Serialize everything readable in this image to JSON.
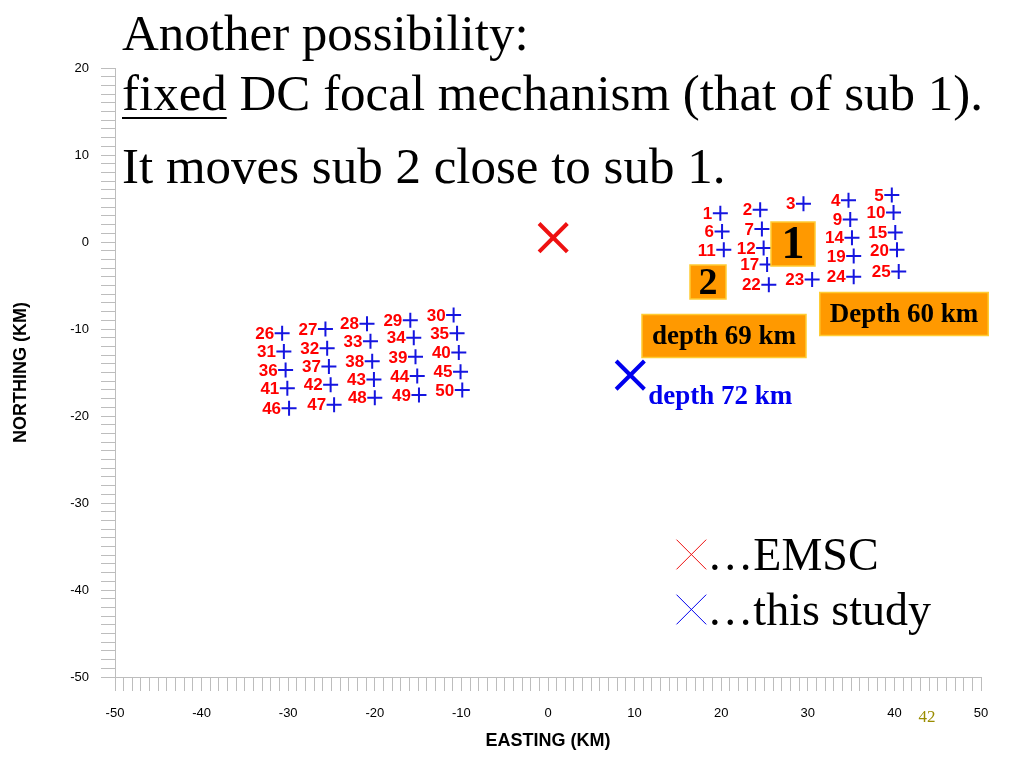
{
  "chart_data": {
    "type": "scatter",
    "title": "Another possibility:\nfixed DC focal mechanism (that of sub 1).",
    "subtitle": "It moves sub 2 close to sub 1.",
    "xlabel": "EASTING (KM)",
    "ylabel": "NORTHING (KM)",
    "xlim": [
      -50,
      50
    ],
    "ylim": [
      -50,
      20
    ],
    "xticks": [
      -50,
      {
        "value": -49,
        "label": null
      },
      {
        "value": -48,
        "label": null
      },
      {
        "value": -47,
        "label": null
      },
      {
        "value": -46,
        "label": null
      },
      {
        "value": -45,
        "label": null
      },
      {
        "value": -44,
        "label": null
      },
      {
        "value": -43,
        "label": null
      },
      {
        "value": -42,
        "label": null
      },
      {
        "value": -41,
        "label": null
      },
      -40,
      {
        "value": -39,
        "label": null
      },
      {
        "value": -38,
        "label": null
      },
      {
        "value": -37,
        "label": null
      },
      {
        "value": -36,
        "label": null
      },
      {
        "value": -35,
        "label": null
      },
      {
        "value": -34,
        "label": null
      },
      {
        "value": -33,
        "label": null
      },
      {
        "value": -32,
        "label": null
      },
      {
        "value": -31,
        "label": null
      },
      -30,
      {
        "value": -29,
        "label": null
      },
      {
        "value": -28,
        "label": null
      },
      {
        "value": -27,
        "label": null
      },
      {
        "value": -26,
        "label": null
      },
      {
        "value": -25,
        "label": null
      },
      {
        "value": -24,
        "label": null
      },
      {
        "value": -23,
        "label": null
      },
      {
        "value": -22,
        "label": null
      },
      {
        "value": -21,
        "label": null
      },
      -20,
      {
        "value": -19,
        "label": null
      },
      {
        "value": -18,
        "label": null
      },
      {
        "value": -17,
        "label": null
      },
      {
        "value": -16,
        "label": null
      },
      {
        "value": -15,
        "label": null
      },
      {
        "value": -14,
        "label": null
      },
      {
        "value": -13,
        "label": null
      },
      {
        "value": -12,
        "label": null
      },
      {
        "value": -11,
        "label": null
      },
      -10,
      {
        "value": -9,
        "label": null
      },
      {
        "value": -8,
        "label": null
      },
      {
        "value": -7,
        "label": null
      },
      {
        "value": -6,
        "label": null
      },
      {
        "value": -5,
        "label": null
      },
      {
        "value": -4,
        "label": null
      },
      {
        "value": -3,
        "label": null
      },
      {
        "value": -2,
        "label": null
      },
      {
        "value": -1,
        "label": null
      },
      0,
      {
        "value": 1,
        "label": null
      },
      {
        "value": 2,
        "label": null
      },
      {
        "value": 3,
        "label": null
      },
      {
        "value": 4,
        "label": null
      },
      {
        "value": 5,
        "label": null
      },
      {
        "value": 6,
        "label": null
      },
      {
        "value": 7,
        "label": null
      },
      {
        "value": 8,
        "label": null
      },
      {
        "value": 9,
        "label": null
      },
      10,
      {
        "value": 11,
        "label": null
      },
      {
        "value": 12,
        "label": null
      },
      {
        "value": 13,
        "label": null
      },
      {
        "value": 14,
        "label": null
      },
      {
        "value": 15,
        "label": null
      },
      {
        "value": 16,
        "label": null
      },
      {
        "value": 17,
        "label": null
      },
      {
        "value": 18,
        "label": null
      },
      {
        "value": 19,
        "label": null
      },
      20,
      {
        "value": 21,
        "label": null
      },
      {
        "value": 22,
        "label": null
      },
      {
        "value": 23,
        "label": null
      },
      {
        "value": 24,
        "label": null
      },
      {
        "value": 25,
        "label": null
      },
      {
        "value": 26,
        "label": null
      },
      {
        "value": 27,
        "label": null
      },
      {
        "value": 28,
        "label": null
      },
      {
        "value": 29,
        "label": null
      },
      30,
      {
        "value": 31,
        "label": null
      },
      {
        "value": 32,
        "label": null
      },
      {
        "value": 33,
        "label": null
      },
      {
        "value": 34,
        "label": null
      },
      {
        "value": 35,
        "label": null
      },
      {
        "value": 36,
        "label": null
      },
      {
        "value": 37,
        "label": null
      },
      {
        "value": 38,
        "label": null
      },
      {
        "value": 39,
        "label": null
      },
      40,
      {
        "value": 41,
        "label": null
      },
      {
        "value": 42,
        "label": null
      },
      {
        "value": 43,
        "label": null
      },
      {
        "value": 44,
        "label": null
      },
      {
        "value": 45,
        "label": null
      },
      {
        "value": 46,
        "label": null
      },
      {
        "value": 47,
        "label": null
      },
      {
        "value": 48,
        "label": null
      },
      {
        "value": 49,
        "label": null
      },
      50
    ],
    "yticks": [
      -50,
      {
        "value": -49,
        "label": null
      },
      {
        "value": -48,
        "label": null
      },
      {
        "value": -47,
        "label": null
      },
      {
        "value": -46,
        "label": null
      },
      {
        "value": -45,
        "label": null
      },
      {
        "value": -44,
        "label": null
      },
      {
        "value": -43,
        "label": null
      },
      {
        "value": -42,
        "label": null
      },
      {
        "value": -41,
        "label": null
      },
      -40,
      {
        "value": -39,
        "label": null
      },
      {
        "value": -38,
        "label": null
      },
      {
        "value": -37,
        "label": null
      },
      {
        "value": -36,
        "label": null
      },
      {
        "value": -35,
        "label": null
      },
      {
        "value": -34,
        "label": null
      },
      {
        "value": -33,
        "label": null
      },
      {
        "value": -32,
        "label": null
      },
      {
        "value": -31,
        "label": null
      },
      -30,
      {
        "value": -29,
        "label": null
      },
      {
        "value": -28,
        "label": null
      },
      {
        "value": -27,
        "label": null
      },
      {
        "value": -26,
        "label": null
      },
      {
        "value": -25,
        "label": null
      },
      {
        "value": -24,
        "label": null
      },
      {
        "value": -23,
        "label": null
      },
      {
        "value": -22,
        "label": null
      },
      {
        "value": -21,
        "label": null
      },
      -20,
      {
        "value": -19,
        "label": null
      },
      {
        "value": -18,
        "label": null
      },
      {
        "value": -17,
        "label": null
      },
      {
        "value": -16,
        "label": null
      },
      {
        "value": -15,
        "label": null
      },
      {
        "value": -14,
        "label": null
      },
      {
        "value": -13,
        "label": null
      },
      {
        "value": -12,
        "label": null
      },
      {
        "value": -11,
        "label": null
      },
      -10,
      {
        "value": -9,
        "label": null
      },
      {
        "value": -8,
        "label": null
      },
      {
        "value": -7,
        "label": null
      },
      {
        "value": -6,
        "label": null
      },
      {
        "value": -5,
        "label": null
      },
      {
        "value": -4,
        "label": null
      },
      {
        "value": -3,
        "label": null
      },
      {
        "value": -2,
        "label": null
      },
      {
        "value": -1,
        "label": null
      },
      0,
      {
        "value": 1,
        "label": null
      },
      {
        "value": 2,
        "label": null
      },
      {
        "value": 3,
        "label": null
      },
      {
        "value": 4,
        "label": null
      },
      {
        "value": 5,
        "label": null
      },
      {
        "value": 6,
        "label": null
      },
      {
        "value": 7,
        "label": null
      },
      {
        "value": 8,
        "label": null
      },
      {
        "value": 9,
        "label": null
      },
      10,
      {
        "value": 11,
        "label": null
      },
      {
        "value": 12,
        "label": null
      },
      {
        "value": 13,
        "label": null
      },
      {
        "value": 14,
        "label": null
      },
      {
        "value": 15,
        "label": null
      },
      {
        "value": 16,
        "label": null
      },
      {
        "value": 17,
        "label": null
      },
      {
        "value": 18,
        "label": null
      },
      {
        "value": 19,
        "label": null
      },
      20
    ],
    "series": [
      {
        "color": "#1515e0",
        "marker": "cross",
        "x": [
          19.9,
          24.5,
          29.5,
          34.7,
          39.7,
          20.1,
          24.7,
          34.9,
          39.9,
          20.3,
          24.9,
          35.1,
          40.1,
          25.3,
          35.3,
          40.3,
          25.5,
          30.5,
          35.3,
          40.5,
          -30.7,
          -25.7,
          -20.9,
          -15.9,
          -10.9,
          -30.5,
          -25.5,
          -20.5,
          -15.5,
          -10.5,
          -30.3,
          -25.3,
          -20.3,
          -15.3,
          -10.3,
          -30.1,
          -25.1,
          -20.1,
          -15.1,
          -10.1,
          -29.9,
          -24.7,
          -20.0,
          -14.9,
          -9.9
        ],
        "values": [
          3.3,
          3.7,
          4.4,
          4.8,
          5.4,
          1.2,
          1.5,
          2.6,
          3.4,
          -0.9,
          -0.7,
          0.5,
          1.1,
          -2.6,
          -1.6,
          -0.9,
          -4.9,
          -4.3,
          -4.0,
          -3.4,
          -10.5,
          -10.0,
          -9.4,
          -9.0,
          -8.4,
          -12.6,
          -12.2,
          -11.4,
          -11.0,
          -10.5,
          -14.7,
          -14.3,
          -13.7,
          -13.2,
          -12.7,
          -16.8,
          -16.4,
          -15.8,
          -15.4,
          -14.9,
          -19.1,
          -18.7,
          -17.9,
          -17.6,
          -17.0
        ]
      },
      {
        "name": "…EMSC",
        "color": "#ee1111",
        "marker": "x",
        "x": [
          0.6
        ],
        "values": [
          0.5
        ]
      },
      {
        "name": "…this study",
        "color": "#0000ee",
        "marker": "x",
        "x": [
          9.5
        ],
        "values": [
          -15.3
        ]
      }
    ],
    "legend": "bottom right",
    "annotations": [
      "1",
      "2",
      "Depth 60 km",
      "depth 69 km",
      {
        "text": "depth 72 km",
        "x": 9.5,
        "y": -15.3
      },
      "42",
      {
        "text": "1",
        "x": 19.9,
        "y": 3.3
      },
      {
        "text": "2",
        "x": 24.5,
        "y": 3.7
      },
      {
        "text": "3",
        "x": 29.5,
        "y": 4.4
      },
      {
        "text": "4",
        "x": 34.7,
        "y": 4.8
      },
      {
        "text": "5",
        "x": 39.7,
        "y": 5.4
      },
      {
        "text": "6",
        "x": 20.1,
        "y": 1.2
      },
      {
        "text": "7",
        "x": 24.7,
        "y": 1.5
      },
      {
        "text": "9",
        "x": 34.9,
        "y": 2.6
      },
      {
        "text": "10",
        "x": 39.9,
        "y": 3.4
      },
      {
        "text": "11",
        "x": 20.3,
        "y": -0.9
      },
      {
        "text": "12",
        "x": 24.9,
        "y": -0.7
      },
      {
        "text": "14",
        "x": 35.1,
        "y": 0.5
      },
      {
        "text": "15",
        "x": 40.1,
        "y": 1.1
      },
      {
        "text": "17",
        "x": 25.3,
        "y": -2.6
      },
      {
        "text": "19",
        "x": 35.3,
        "y": -1.6
      },
      {
        "text": "20",
        "x": 40.3,
        "y": -0.9
      },
      {
        "text": "22",
        "x": 25.5,
        "y": -4.9
      },
      {
        "text": "23",
        "x": 30.5,
        "y": -4.3
      },
      {
        "text": "24",
        "x": 35.3,
        "y": -4.0
      },
      {
        "text": "25",
        "x": 40.5,
        "y": -3.4
      },
      {
        "text": "26",
        "x": -30.7,
        "y": -10.5
      },
      {
        "text": "27",
        "x": -25.7,
        "y": -10.0
      },
      {
        "text": "28",
        "x": -20.9,
        "y": -9.4
      },
      {
        "text": "29",
        "x": -15.9,
        "y": -9.0
      },
      {
        "text": "30",
        "x": -10.9,
        "y": -8.4
      },
      {
        "text": "31",
        "x": -30.5,
        "y": -12.6
      },
      {
        "text": "32",
        "x": -25.5,
        "y": -12.2
      },
      {
        "text": "33",
        "x": -20.5,
        "y": -11.4
      },
      {
        "text": "34",
        "x": -15.5,
        "y": -11.0
      },
      {
        "text": "35",
        "x": -10.5,
        "y": -10.5
      },
      {
        "text": "36",
        "x": -30.3,
        "y": -14.7
      },
      {
        "text": "37",
        "x": -25.3,
        "y": -14.3
      },
      {
        "text": "38",
        "x": -20.3,
        "y": -13.7
      },
      {
        "text": "39",
        "x": -15.3,
        "y": -13.2
      },
      {
        "text": "40",
        "x": -10.3,
        "y": -12.7
      },
      {
        "text": "41",
        "x": -30.1,
        "y": -16.8
      },
      {
        "text": "42",
        "x": -25.1,
        "y": -16.4
      },
      {
        "text": "43",
        "x": -20.1,
        "y": -15.8
      },
      {
        "text": "44",
        "x": -15.1,
        "y": -15.4
      },
      {
        "text": "45",
        "x": -10.1,
        "y": -14.9
      },
      {
        "text": "46",
        "x": -29.9,
        "y": -19.1
      },
      {
        "text": "47",
        "x": -24.7,
        "y": -18.7
      },
      {
        "text": "48",
        "x": -20.0,
        "y": -17.9
      },
      {
        "text": "49",
        "x": -14.9,
        "y": -17.6
      },
      {
        "text": "50",
        "x": -9.9,
        "y": -17.0
      }
    ]
  }
}
